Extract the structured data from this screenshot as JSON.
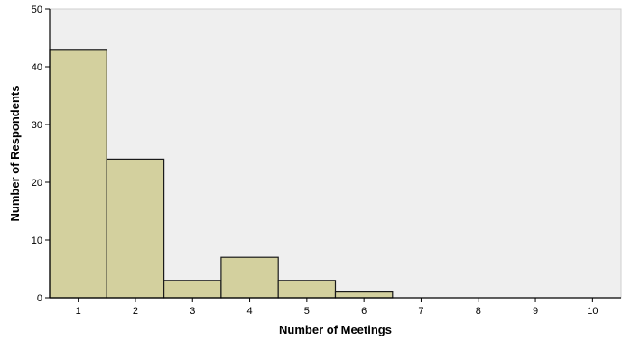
{
  "chart_data": {
    "type": "bar",
    "title": "",
    "xlabel": "Number of Meetings",
    "ylabel": "Number of Respondents",
    "x": [
      1,
      2,
      3,
      4,
      5,
      6,
      7,
      8,
      9,
      10
    ],
    "x_tick_labels": [
      "1",
      "2",
      "3",
      "4",
      "5",
      "6",
      "7",
      "8",
      "9",
      "10"
    ],
    "values": [
      43,
      24,
      3,
      7,
      3,
      1,
      0,
      0,
      0,
      0
    ],
    "xlim": [
      0.5,
      10.5
    ],
    "ylim": [
      0,
      50
    ],
    "y_ticks": [
      0,
      10,
      20,
      30,
      40,
      50
    ],
    "y_tick_labels": [
      "0",
      "10",
      "20",
      "30",
      "40",
      "50"
    ],
    "bar_width": 1,
    "grid": false,
    "legend": "none",
    "colors": {
      "bar_fill": "#d3d09e",
      "bar_stroke": "#1a1a1a",
      "plot_background": "#efefef",
      "axis": "#000000"
    }
  }
}
